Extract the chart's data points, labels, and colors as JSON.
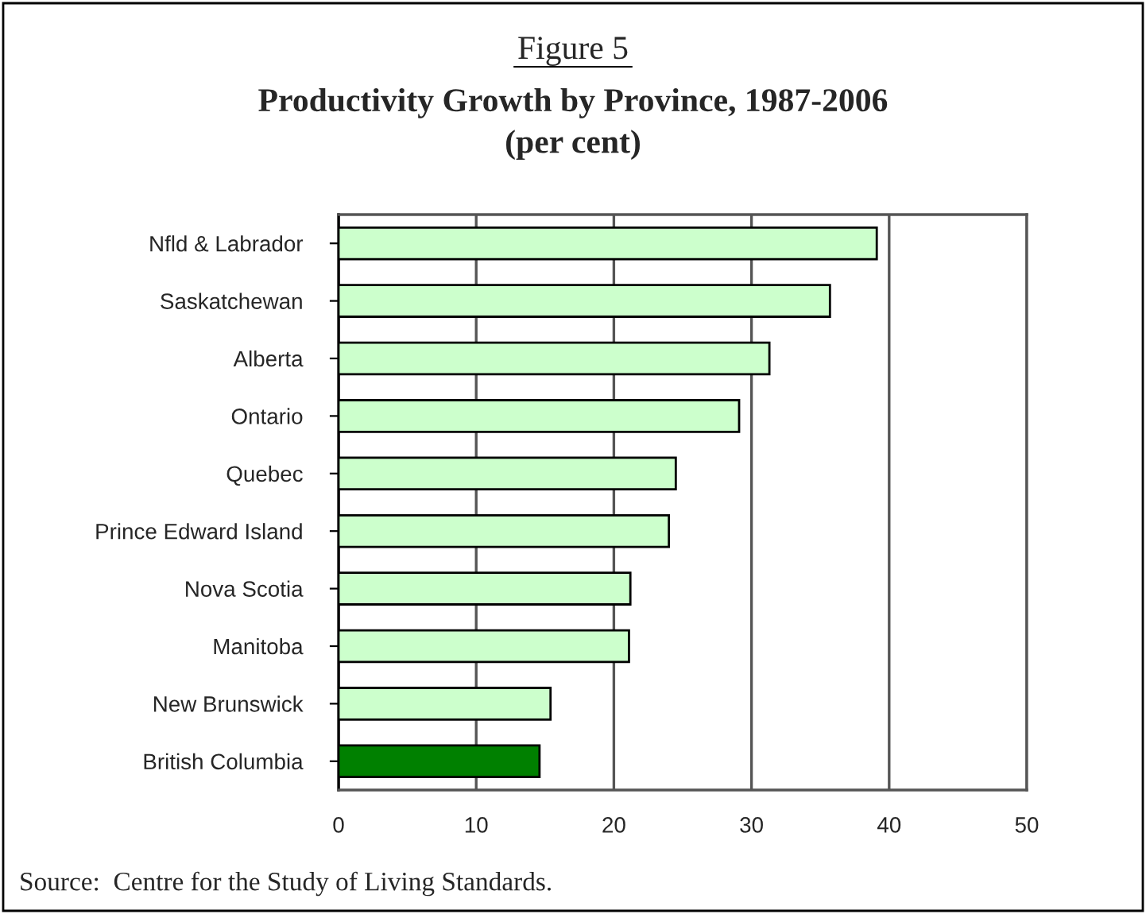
{
  "chart_data": {
    "type": "bar",
    "orientation": "horizontal",
    "title": "Figure 5",
    "subtitle": "Productivity Growth by Province, 1987-2006\n(per cent)",
    "categories": [
      "Nfld & Labrador",
      "Saskatchewan",
      "Alberta",
      "Ontario",
      "Quebec",
      "Prince Edward Island",
      "Nova Scotia",
      "Manitoba",
      "New Brunswick",
      "British Columbia"
    ],
    "values": [
      39.1,
      35.7,
      31.3,
      29.1,
      24.5,
      24.0,
      21.2,
      21.1,
      15.4,
      14.6
    ],
    "colors": [
      "#ccffcc",
      "#ccffcc",
      "#ccffcc",
      "#ccffcc",
      "#ccffcc",
      "#ccffcc",
      "#ccffcc",
      "#ccffcc",
      "#ccffcc",
      "#008000"
    ],
    "xlim": [
      0,
      50
    ],
    "xticks": [
      0,
      10,
      20,
      30,
      40,
      50
    ],
    "grid": "x",
    "annotations": [
      "Source:  Centre for the Study of Living Standards."
    ]
  }
}
